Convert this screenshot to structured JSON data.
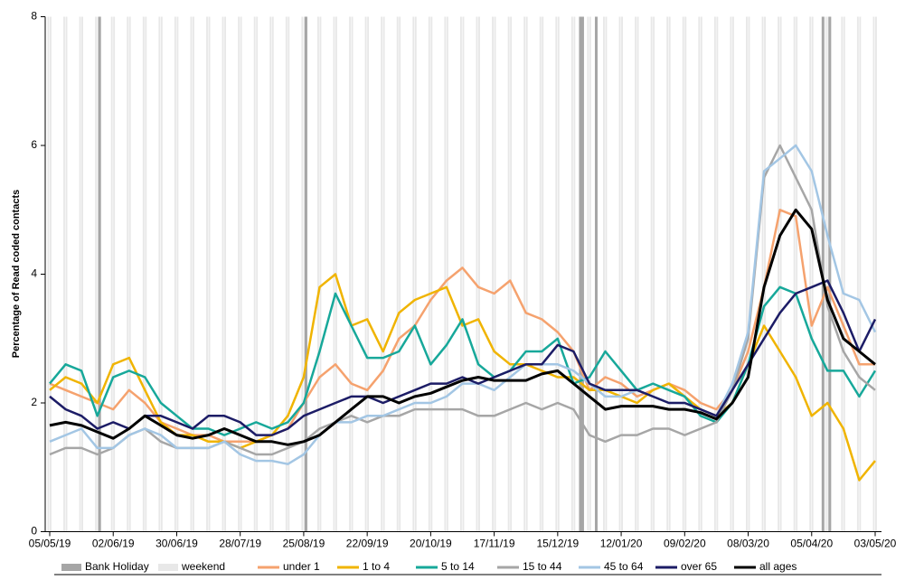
{
  "chart_data": {
    "type": "line",
    "y_label": "Percentage of Read coded contacts",
    "x": [
      "05/05/19",
      null,
      null,
      null,
      "02/06/19",
      null,
      null,
      null,
      "30/06/19",
      null,
      null,
      null,
      "28/07/19",
      null,
      null,
      null,
      "25/08/19",
      null,
      null,
      null,
      "22/09/19",
      null,
      null,
      null,
      "20/10/19",
      null,
      null,
      null,
      "17/11/19",
      null,
      null,
      null,
      "15/12/19",
      null,
      null,
      null,
      "12/01/20",
      null,
      null,
      null,
      "09/02/20",
      null,
      null,
      null,
      "08/03/20",
      null,
      null,
      null,
      "05/04/20",
      null,
      null,
      null,
      "03/05/20"
    ],
    "ylim": [
      0,
      8
    ],
    "yticks": [
      0,
      2,
      4,
      6,
      8
    ],
    "bands": [
      {
        "name": "Bank Holiday",
        "color": "#a6a6a6",
        "days": [
          22,
          113,
          234,
          235,
          241,
          341,
          344
        ]
      },
      {
        "name": "weekend",
        "color": "#e8e8e8"
      }
    ],
    "series": [
      {
        "name": "under 1",
        "color": "#f5a26e",
        "values": [
          2.3,
          2.2,
          2.1,
          2.0,
          1.9,
          2.2,
          2.0,
          1.7,
          1.6,
          1.5,
          1.5,
          1.4,
          1.4,
          1.4,
          1.5,
          1.6,
          2.0,
          2.4,
          2.6,
          2.3,
          2.2,
          2.5,
          3.0,
          3.2,
          3.6,
          3.9,
          4.1,
          3.8,
          3.7,
          3.9,
          3.4,
          3.3,
          3.1,
          2.8,
          2.2,
          2.4,
          2.3,
          2.1,
          2.2,
          2.3,
          2.2,
          2.0,
          1.9,
          2.2,
          2.8,
          3.8,
          5.0,
          4.9,
          3.2,
          3.8,
          3.2,
          2.6,
          2.6
        ]
      },
      {
        "name": "1 to 4",
        "color": "#f0b400",
        "values": [
          2.2,
          2.4,
          2.3,
          2.0,
          2.6,
          2.7,
          2.2,
          1.7,
          1.5,
          1.5,
          1.4,
          1.4,
          1.3,
          1.4,
          1.5,
          1.8,
          2.4,
          3.8,
          4.0,
          3.2,
          3.3,
          2.8,
          3.4,
          3.6,
          3.7,
          3.8,
          3.2,
          3.3,
          2.8,
          2.6,
          2.6,
          2.5,
          2.4,
          2.4,
          2.2,
          2.2,
          2.1,
          2.0,
          2.2,
          2.3,
          2.1,
          1.9,
          1.8,
          2.0,
          2.6,
          3.2,
          2.8,
          2.4,
          1.8,
          2.0,
          1.6,
          0.8,
          1.1
        ]
      },
      {
        "name": "5 to 14",
        "color": "#17a89a",
        "values": [
          2.3,
          2.6,
          2.5,
          1.8,
          2.4,
          2.5,
          2.4,
          2.0,
          1.8,
          1.6,
          1.6,
          1.5,
          1.6,
          1.7,
          1.6,
          1.7,
          2.0,
          2.8,
          3.7,
          3.2,
          2.7,
          2.7,
          2.8,
          3.2,
          2.6,
          2.9,
          3.3,
          2.6,
          2.4,
          2.5,
          2.8,
          2.8,
          3.0,
          2.3,
          2.4,
          2.8,
          2.5,
          2.2,
          2.3,
          2.2,
          2.1,
          1.8,
          1.7,
          2.0,
          2.6,
          3.5,
          3.8,
          3.7,
          3.0,
          2.5,
          2.5,
          2.1,
          2.5
        ]
      },
      {
        "name": "15 to 44",
        "color": "#a6a6a6",
        "values": [
          1.2,
          1.3,
          1.3,
          1.2,
          1.3,
          1.5,
          1.6,
          1.4,
          1.3,
          1.3,
          1.3,
          1.4,
          1.3,
          1.2,
          1.2,
          1.3,
          1.4,
          1.6,
          1.7,
          1.8,
          1.7,
          1.8,
          1.8,
          1.9,
          1.9,
          1.9,
          1.9,
          1.8,
          1.8,
          1.9,
          2.0,
          1.9,
          2.0,
          1.9,
          1.5,
          1.4,
          1.5,
          1.5,
          1.6,
          1.6,
          1.5,
          1.6,
          1.7,
          2.2,
          3.0,
          5.5,
          6.0,
          5.5,
          5.0,
          3.5,
          2.8,
          2.4,
          2.2
        ]
      },
      {
        "name": "45 to 64",
        "color": "#a3c6e4",
        "values": [
          1.4,
          1.5,
          1.6,
          1.3,
          1.3,
          1.5,
          1.6,
          1.5,
          1.3,
          1.3,
          1.3,
          1.4,
          1.2,
          1.1,
          1.1,
          1.05,
          1.2,
          1.5,
          1.7,
          1.7,
          1.8,
          1.8,
          1.9,
          2.0,
          2.0,
          2.1,
          2.3,
          2.3,
          2.2,
          2.4,
          2.6,
          2.6,
          2.6,
          2.5,
          2.3,
          2.1,
          2.1,
          2.2,
          2.1,
          2.0,
          2.0,
          1.9,
          1.8,
          2.3,
          3.1,
          5.6,
          5.8,
          6.0,
          5.6,
          4.6,
          3.7,
          3.6,
          3.1
        ]
      },
      {
        "name": "over 65",
        "color": "#1c1c66",
        "values": [
          2.1,
          1.9,
          1.8,
          1.6,
          1.7,
          1.6,
          1.8,
          1.8,
          1.7,
          1.6,
          1.8,
          1.8,
          1.7,
          1.5,
          1.5,
          1.6,
          1.8,
          1.9,
          2.0,
          2.1,
          2.1,
          2.0,
          2.1,
          2.2,
          2.3,
          2.3,
          2.4,
          2.3,
          2.4,
          2.5,
          2.6,
          2.6,
          2.9,
          2.8,
          2.3,
          2.2,
          2.2,
          2.2,
          2.1,
          2.0,
          2.0,
          1.9,
          1.8,
          2.2,
          2.6,
          3.0,
          3.4,
          3.7,
          3.8,
          3.9,
          3.4,
          2.8,
          3.3
        ]
      },
      {
        "name": "all ages",
        "color": "#000000",
        "values": [
          1.65,
          1.7,
          1.65,
          1.55,
          1.45,
          1.6,
          1.8,
          1.65,
          1.5,
          1.45,
          1.5,
          1.6,
          1.5,
          1.4,
          1.4,
          1.35,
          1.4,
          1.5,
          1.7,
          1.9,
          2.1,
          2.1,
          2.0,
          2.1,
          2.15,
          2.25,
          2.35,
          2.4,
          2.35,
          2.35,
          2.35,
          2.45,
          2.5,
          2.3,
          2.1,
          1.9,
          1.95,
          1.95,
          1.95,
          1.9,
          1.9,
          1.85,
          1.75,
          2.0,
          2.4,
          3.8,
          4.6,
          5.0,
          4.7,
          3.6,
          3.0,
          2.8,
          2.6
        ]
      }
    ]
  }
}
